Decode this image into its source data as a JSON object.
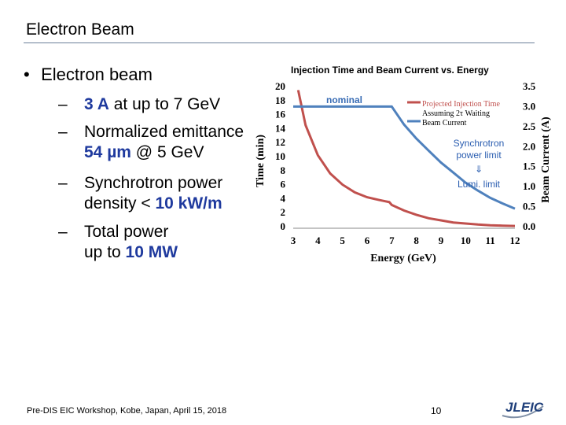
{
  "slide": {
    "title": "Electron Beam",
    "bullet": "Electron beam",
    "subs": [
      {
        "a": "",
        "hl": "3 A",
        "b": " at up to 7 GeV",
        "line2": ""
      },
      {
        "a": "Normalized emittance",
        "hl": "",
        "b": "",
        "line2_hl": "54 µm",
        "line2": " @ 5 GeV"
      },
      {
        "a": "Synchrotron power",
        "line2_a": "density < ",
        "line2_hl": "10 kW/m"
      },
      {
        "a": "Total power",
        "line2_a": "up to ",
        "line2_hl": "10 MW"
      }
    ],
    "dash": "–",
    "footer": "Pre-DIS EIC Workshop, Kobe, Japan, April 15, 2018",
    "page_number": "10",
    "logo_text": "JLEIC"
  },
  "chart_data": {
    "type": "line",
    "title": "Injection Time and Beam Current vs. Energy",
    "xlabel": "Energy (GeV)",
    "ylabel": "Time (min)",
    "y2label": "Beam Current (A)",
    "xlim": [
      3,
      12
    ],
    "ylim": [
      0,
      20
    ],
    "y2lim": [
      0,
      3.5
    ],
    "x_ticks": [
      "3",
      "4",
      "5",
      "6",
      "7",
      "8",
      "9",
      "10",
      "11",
      "12"
    ],
    "y_ticks": [
      "0",
      "2",
      "4",
      "6",
      "8",
      "10",
      "12",
      "14",
      "16",
      "18",
      "20"
    ],
    "y2_ticks": [
      "0.0",
      "0.5",
      "1.0",
      "1.5",
      "2.0",
      "2.5",
      "3.0",
      "3.5"
    ],
    "series": [
      {
        "name": "Projected Injection Time Assuming 2τ Waiting",
        "axis": "left",
        "color": "#c0504d",
        "x": [
          3.2,
          3.5,
          4,
          4.5,
          5,
          5.5,
          6,
          6.5,
          6.9,
          7,
          7.5,
          8,
          8.5,
          9,
          9.5,
          10,
          10.5,
          11,
          11.5,
          12
        ],
        "y": [
          19.5,
          14.5,
          10.2,
          7.6,
          6.0,
          4.9,
          4.2,
          3.8,
          3.5,
          3.1,
          2.3,
          1.7,
          1.2,
          0.9,
          0.6,
          0.45,
          0.3,
          0.2,
          0.15,
          0.1
        ]
      },
      {
        "name": "Beam Current",
        "axis": "right",
        "color": "#4f81bd",
        "x": [
          3,
          7,
          7.5,
          8,
          8.5,
          9,
          9.5,
          10,
          10.5,
          11,
          11.5,
          12
        ],
        "y": [
          3.0,
          3.0,
          2.55,
          2.2,
          1.9,
          1.6,
          1.35,
          1.1,
          0.9,
          0.72,
          0.58,
          0.45
        ]
      }
    ],
    "annotations": {
      "nominal": "nominal",
      "sync_line1": "Synchrotron",
      "sync_line2": "power limit",
      "arrow": "⇓",
      "lumi": "Lumi. limit"
    }
  }
}
